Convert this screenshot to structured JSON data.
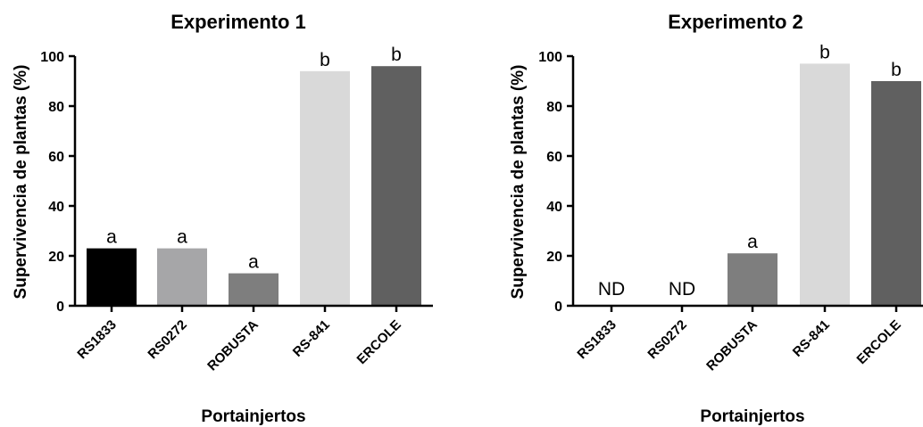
{
  "chart_data": [
    {
      "type": "bar",
      "title": "Experimento 1",
      "xlabel": "Portainjertos",
      "ylabel": "Supervivencia de plantas (%)",
      "ylim": [
        0,
        100
      ],
      "yticks": [
        "0",
        "20",
        "40",
        "60",
        "80",
        "100"
      ],
      "categories": [
        "RS1833",
        "RS0272",
        "ROBUSTA",
        "RS-841",
        "ERCOLE"
      ],
      "values": [
        23,
        23,
        13,
        94,
        96
      ],
      "labels": [
        "a",
        "a",
        "a",
        "b",
        "b"
      ],
      "colors": [
        "#000000",
        "#a6a6a8",
        "#7e7e7e",
        "#d9d9d9",
        "#606060"
      ],
      "grid": false
    },
    {
      "type": "bar",
      "title": "Experimento 2",
      "xlabel": "Portainjertos",
      "ylabel": "Supervivencia de plantas (%)",
      "ylim": [
        0,
        100
      ],
      "yticks": [
        "0",
        "20",
        "40",
        "60",
        "80",
        "100"
      ],
      "categories": [
        "RS1833",
        "RS0272",
        "ROBUSTA",
        "RS-841",
        "ERCOLE"
      ],
      "values": [
        null,
        null,
        21,
        97,
        90
      ],
      "labels": [
        "ND",
        "ND",
        "a",
        "b",
        "b"
      ],
      "colors": [
        "#000000",
        "#a6a6a8",
        "#7e7e7e",
        "#d9d9d9",
        "#606060"
      ],
      "grid": false
    }
  ]
}
